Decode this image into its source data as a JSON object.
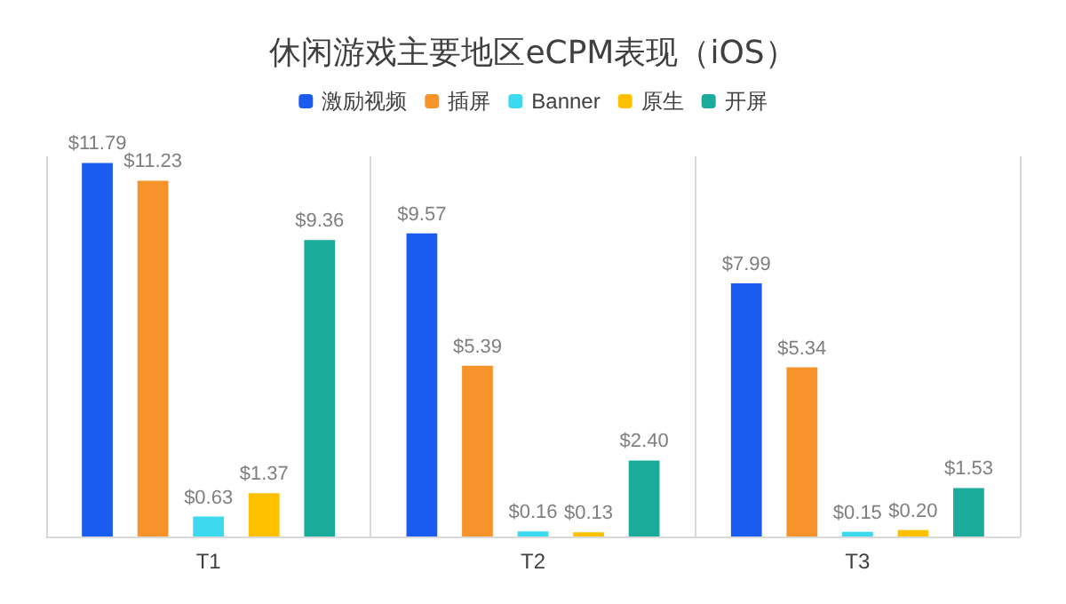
{
  "chart_data": {
    "type": "bar",
    "title": "休闲游戏主要地区eCPM表现（iOS）",
    "categories": [
      "T1",
      "T2",
      "T3"
    ],
    "series": [
      {
        "name": "激励视频",
        "color": "#1a5cf0",
        "values": [
          11.79,
          9.57,
          7.99
        ],
        "value_labels": [
          "$11.79",
          "$9.57",
          "$7.99"
        ]
      },
      {
        "name": "插屏",
        "color": "#f7932b",
        "values": [
          11.23,
          5.39,
          5.34
        ],
        "value_labels": [
          "$11.23",
          "$5.39",
          "$5.34"
        ]
      },
      {
        "name": "Banner",
        "color": "#3dd9ef",
        "values": [
          0.63,
          0.16,
          0.15
        ],
        "value_labels": [
          "$0.63",
          "$0.16",
          "$0.15"
        ]
      },
      {
        "name": "原生",
        "color": "#ffc000",
        "values": [
          1.37,
          0.13,
          0.2
        ],
        "value_labels": [
          "$1.37",
          "$0.13",
          "$0.20"
        ]
      },
      {
        "name": "开屏",
        "color": "#1aab9b",
        "values": [
          9.36,
          2.4,
          1.53
        ],
        "value_labels": [
          "$9.36",
          "$2.40",
          "$1.53"
        ]
      }
    ],
    "legend": "top",
    "grid": "x",
    "tick_labels": "x"
  }
}
